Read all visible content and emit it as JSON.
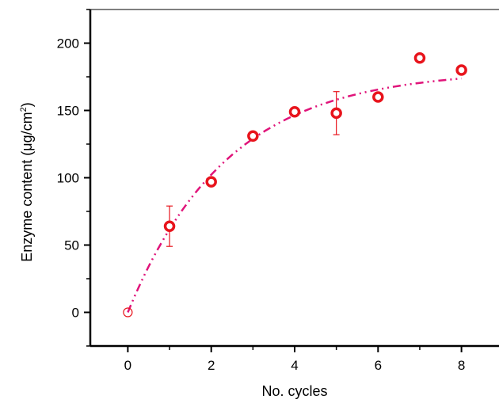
{
  "chart_data": {
    "type": "scatter",
    "xlabel": "No. cycles",
    "ylabel_main": "Enzyme content (μg/cm",
    "ylabel_sup": "2",
    "ylabel_close": ")",
    "xlim": [
      -0.9,
      8.9
    ],
    "ylim": [
      -25,
      225
    ],
    "xticks": [
      0,
      2,
      4,
      6,
      8
    ],
    "yticks": [
      0,
      50,
      100,
      150,
      200
    ],
    "marker_color": "#e8141c",
    "fit_color": "#e0147a",
    "series": [
      {
        "points": [
          {
            "x": 0,
            "y": 0,
            "err": 0,
            "hollow_thin": true
          },
          {
            "x": 1,
            "y": 64,
            "err": 15
          },
          {
            "x": 2,
            "y": 97,
            "err": 0
          },
          {
            "x": 3,
            "y": 131,
            "err": 0
          },
          {
            "x": 4,
            "y": 149,
            "err": 0
          },
          {
            "x": 5,
            "y": 148,
            "err": 16
          },
          {
            "x": 6,
            "y": 160,
            "err": 0
          },
          {
            "x": 7,
            "y": 189,
            "err": 0
          },
          {
            "x": 8,
            "y": 180,
            "err": 0
          }
        ]
      }
    ],
    "fit": {
      "type": "exponential",
      "ymax": 180,
      "k": 0.42,
      "from": 0,
      "to": 8
    },
    "grid": false,
    "legend": "none"
  }
}
